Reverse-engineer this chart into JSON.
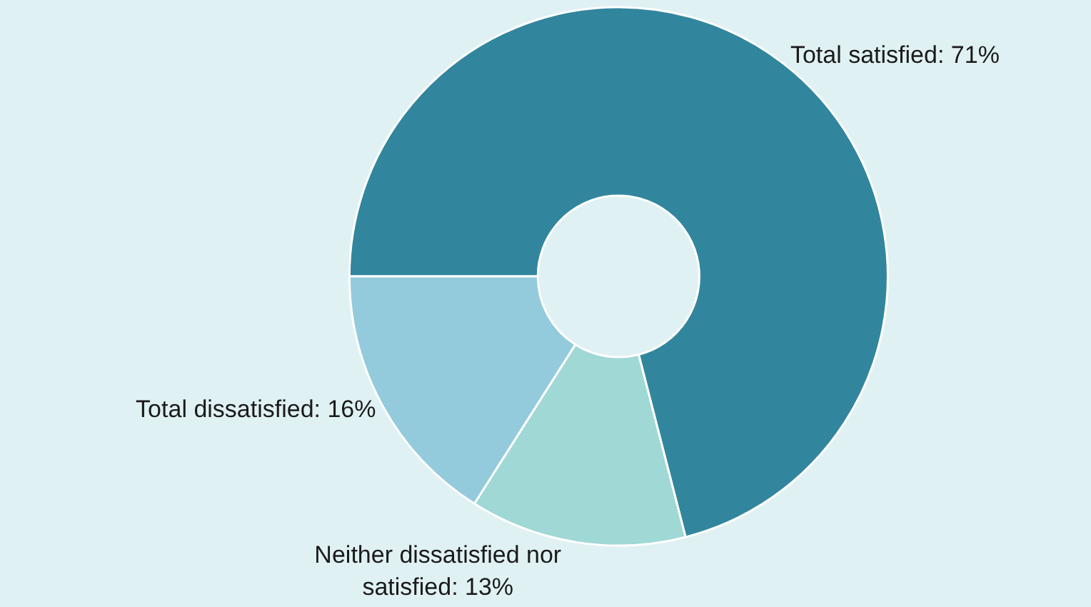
{
  "chart_data": {
    "type": "donut",
    "categories": [
      "Total satisfied",
      "Neither dissatisfied nor satisfied",
      "Total dissatisfied"
    ],
    "values": [
      71,
      13,
      16
    ],
    "value_labels": [
      "71%",
      "13%",
      "16%"
    ],
    "colors": [
      "#31869e",
      "#a0d8d6",
      "#93cbdd"
    ]
  }
}
